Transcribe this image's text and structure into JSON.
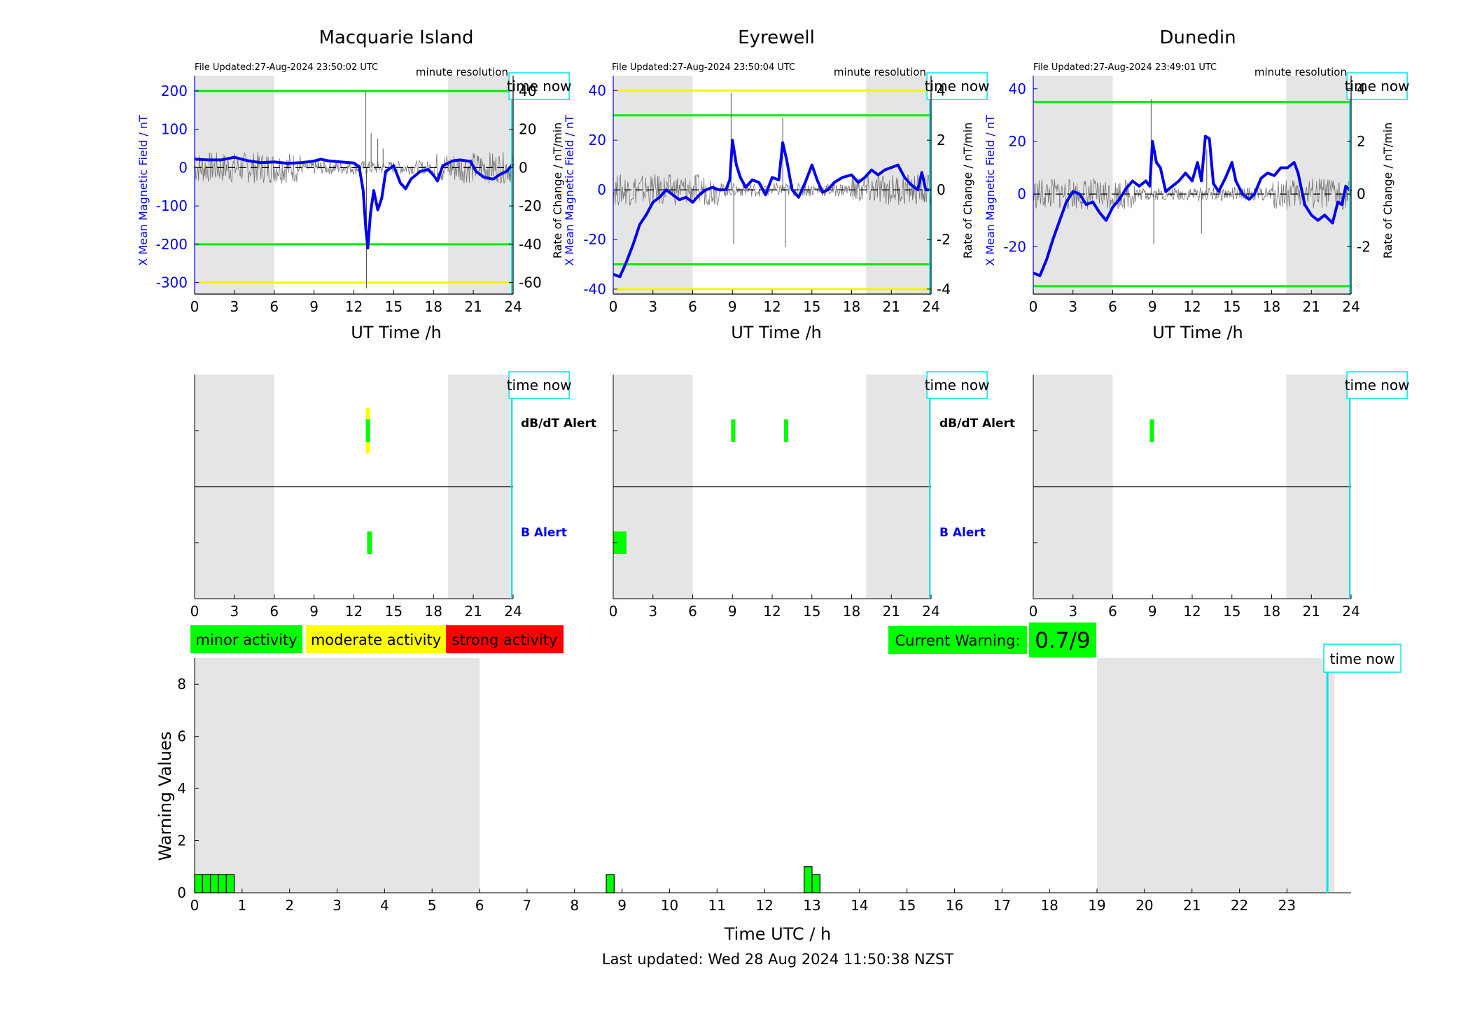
{
  "colors": {
    "bfield": "#0000ee",
    "rate": "#555555",
    "green_line": "#00ee00",
    "yellow_line": "#f5f500",
    "night": "#e5e5e5",
    "cyan": "#00e5e5",
    "minor": "#00ff00",
    "moderate": "#ffff00",
    "strong": "#ff0000"
  },
  "stations": [
    {
      "title": "Macquarie Island",
      "file_updated": "File Updated:27-Aug-2024 23:50:02 UTC",
      "resolution": "minute resolution",
      "time_now_label": "time now",
      "xlabel": "UT Time /h",
      "ylabel_left": "X Mean Magnetic Field / nT",
      "ylabel_right": "Rate of Change / nT/min",
      "dbdt_label": "dB/dT Alert",
      "b_label": "B Alert",
      "chart_data": {
        "type": "line",
        "xlim": [
          0,
          24
        ],
        "ylim_left": [
          -330,
          240
        ],
        "ylim_right": [
          -66,
          48
        ],
        "yticks_left": [
          200,
          100,
          0,
          -100,
          -200,
          -300
        ],
        "yticks_right": [
          40,
          20,
          0,
          -20,
          -40,
          -60
        ],
        "xticks": [
          0,
          3,
          6,
          9,
          12,
          15,
          18,
          21,
          24
        ],
        "night_bands": [
          [
            0,
            6
          ],
          [
            19.1,
            24
          ]
        ],
        "green_thresholds": [
          200,
          -200
        ],
        "yellow_thresholds": [
          -300
        ],
        "time_now": 23.9,
        "series": [
          {
            "points": [
              [
                0,
                22
              ],
              [
                1,
                20
              ],
              [
                2,
                20
              ],
              [
                3,
                27
              ],
              [
                4,
                18
              ],
              [
                5,
                13
              ],
              [
                6,
                15
              ],
              [
                7,
                11
              ],
              [
                8,
                13
              ],
              [
                9,
                17
              ],
              [
                9.5,
                22
              ],
              [
                10,
                18
              ],
              [
                11,
                15
              ],
              [
                12,
                12
              ],
              [
                12.4,
                2
              ],
              [
                12.7,
                -60
              ],
              [
                12.9,
                -160
              ],
              [
                13.05,
                -210
              ],
              [
                13.25,
                -120
              ],
              [
                13.5,
                -60
              ],
              [
                13.8,
                -110
              ],
              [
                14.1,
                -80
              ],
              [
                14.4,
                -10
              ],
              [
                15,
                5
              ],
              [
                15.5,
                -40
              ],
              [
                15.9,
                -55
              ],
              [
                16.3,
                -30
              ],
              [
                17,
                -10
              ],
              [
                17.6,
                -5
              ],
              [
                18,
                -20
              ],
              [
                18.3,
                -35
              ],
              [
                18.7,
                5
              ],
              [
                19.5,
                18
              ],
              [
                20,
                20
              ],
              [
                20.8,
                16
              ],
              [
                21.2,
                -10
              ],
              [
                21.8,
                -25
              ],
              [
                22.5,
                -30
              ],
              [
                23,
                -18
              ],
              [
                23.5,
                -10
              ],
              [
                24,
                10
              ]
            ]
          }
        ],
        "rate_spikes": [
          [
            12.9,
            40
          ],
          [
            12.95,
            -63
          ],
          [
            13.3,
            18
          ],
          [
            13.8,
            15
          ],
          [
            14.2,
            10
          ],
          [
            9.3,
            4
          ]
        ]
      },
      "alerts": {
        "dbdt": [
          {
            "hour": 12.9,
            "level": "moderate",
            "width": 0.25
          },
          {
            "hour": 12.9,
            "level": "minor",
            "width": 0.3
          }
        ],
        "b": [
          {
            "hour": 13.0,
            "level": "minor",
            "width": 0.35
          }
        ]
      }
    },
    {
      "title": "Eyrewell",
      "file_updated": "File Updated:27-Aug-2024 23:50:04 UTC",
      "resolution": "minute resolution",
      "time_now_label": "time now",
      "xlabel": "UT Time /h",
      "ylabel_left": "X Mean Magnetic Field / nT",
      "ylabel_right": "Rate of Change / nT/min",
      "dbdt_label": "dB/dT Alert",
      "b_label": "B Alert",
      "chart_data": {
        "type": "line",
        "xlim": [
          0,
          24
        ],
        "ylim_left": [
          -42,
          46
        ],
        "ylim_right": [
          -4.2,
          4.6
        ],
        "yticks_left": [
          40,
          20,
          0,
          -20,
          -40
        ],
        "yticks_right": [
          4,
          2,
          0,
          -2,
          -4
        ],
        "xticks": [
          0,
          3,
          6,
          9,
          12,
          15,
          18,
          21,
          24
        ],
        "night_bands": [
          [
            0,
            6
          ],
          [
            19.1,
            24
          ]
        ],
        "green_thresholds": [
          30,
          -30
        ],
        "yellow_thresholds": [
          40,
          -40
        ],
        "time_now": 23.9,
        "series": [
          {
            "points": [
              [
                0,
                -34
              ],
              [
                0.5,
                -35
              ],
              [
                1,
                -29
              ],
              [
                1.5,
                -22
              ],
              [
                2,
                -14
              ],
              [
                2.5,
                -10
              ],
              [
                3,
                -5
              ],
              [
                3.5,
                -3
              ],
              [
                4,
                0
              ],
              [
                4.5,
                -2
              ],
              [
                5,
                -4
              ],
              [
                5.5,
                -3
              ],
              [
                6,
                -5
              ],
              [
                6.5,
                -2
              ],
              [
                7,
                0
              ],
              [
                7.5,
                1
              ],
              [
                8,
                0
              ],
              [
                8.5,
                0
              ],
              [
                8.8,
                4
              ],
              [
                9,
                20
              ],
              [
                9.3,
                10
              ],
              [
                9.6,
                5
              ],
              [
                10,
                1
              ],
              [
                10.5,
                4
              ],
              [
                11,
                3
              ],
              [
                11.5,
                -2
              ],
              [
                12,
                5
              ],
              [
                12.5,
                4
              ],
              [
                12.8,
                19
              ],
              [
                13.1,
                12
              ],
              [
                13.5,
                0
              ],
              [
                14,
                -3
              ],
              [
                14.5,
                3
              ],
              [
                15,
                10
              ],
              [
                15.4,
                4
              ],
              [
                15.8,
                -1
              ],
              [
                16.2,
                0
              ],
              [
                16.7,
                3
              ],
              [
                17.3,
                5
              ],
              [
                18,
                6
              ],
              [
                18.5,
                3
              ],
              [
                19,
                5
              ],
              [
                19.5,
                8
              ],
              [
                20,
                6
              ],
              [
                20.5,
                8
              ],
              [
                21,
                9
              ],
              [
                21.5,
                10
              ],
              [
                22,
                5
              ],
              [
                22.5,
                2
              ],
              [
                23,
                0
              ],
              [
                23.3,
                7
              ],
              [
                23.6,
                0
              ],
              [
                24,
                0
              ]
            ]
          }
        ],
        "rate_spikes": [
          [
            8.9,
            3.9
          ],
          [
            9.1,
            -2.2
          ],
          [
            12.8,
            2.9
          ],
          [
            13,
            -2.3
          ]
        ]
      },
      "alerts": {
        "dbdt": [
          {
            "hour": 8.9,
            "level": "minor",
            "width": 0.3
          },
          {
            "hour": 12.9,
            "level": "minor",
            "width": 0.3
          }
        ],
        "b": [
          {
            "hour": 0.5,
            "level": "minor",
            "width": 1.0
          }
        ]
      }
    },
    {
      "title": "Dunedin",
      "file_updated": "File Updated:27-Aug-2024 23:49:01 UTC",
      "resolution": "minute resolution",
      "time_now_label": "time now",
      "xlabel": "UT Time /h",
      "ylabel_left": "X Mean Magnetic Field / nT",
      "ylabel_right": "Rate of Change / nT/min",
      "dbdt_label": "",
      "b_label": "",
      "chart_data": {
        "type": "line",
        "xlim": [
          0,
          24
        ],
        "ylim_left": [
          -38,
          45
        ],
        "ylim_right": [
          -3.8,
          4.5
        ],
        "yticks_left": [
          40,
          20,
          0,
          -20
        ],
        "yticks_right": [
          4,
          2,
          0,
          -2
        ],
        "xticks": [
          0,
          3,
          6,
          9,
          12,
          15,
          18,
          21,
          24
        ],
        "night_bands": [
          [
            0,
            6
          ],
          [
            19.1,
            24
          ]
        ],
        "green_thresholds": [
          35,
          -35
        ],
        "yellow_thresholds": [],
        "time_now": 23.9,
        "series": [
          {
            "points": [
              [
                0,
                -30
              ],
              [
                0.5,
                -31
              ],
              [
                1,
                -25
              ],
              [
                1.5,
                -17
              ],
              [
                2,
                -10
              ],
              [
                2.5,
                -3
              ],
              [
                3,
                1
              ],
              [
                3.5,
                0
              ],
              [
                4,
                -4
              ],
              [
                4.5,
                -3
              ],
              [
                5,
                -7
              ],
              [
                5.5,
                -10
              ],
              [
                6,
                -5
              ],
              [
                6.5,
                -2
              ],
              [
                7,
                2
              ],
              [
                7.5,
                5
              ],
              [
                8,
                3
              ],
              [
                8.5,
                5
              ],
              [
                8.8,
                3
              ],
              [
                9,
                20
              ],
              [
                9.3,
                12
              ],
              [
                9.6,
                10
              ],
              [
                10,
                1
              ],
              [
                10.5,
                3
              ],
              [
                11,
                5
              ],
              [
                11.5,
                8
              ],
              [
                12,
                5
              ],
              [
                12.4,
                12
              ],
              [
                12.7,
                5
              ],
              [
                13,
                22
              ],
              [
                13.3,
                21
              ],
              [
                13.6,
                4
              ],
              [
                14,
                1
              ],
              [
                14.5,
                6
              ],
              [
                15,
                12
              ],
              [
                15.3,
                5
              ],
              [
                15.8,
                0
              ],
              [
                16.3,
                -2
              ],
              [
                16.7,
                0
              ],
              [
                17.2,
                6
              ],
              [
                17.7,
                8
              ],
              [
                18.2,
                7
              ],
              [
                18.7,
                10
              ],
              [
                19.2,
                10
              ],
              [
                19.7,
                12
              ],
              [
                20,
                8
              ],
              [
                20.5,
                -4
              ],
              [
                21,
                -8
              ],
              [
                21.5,
                -10
              ],
              [
                22,
                -8
              ],
              [
                22.6,
                -11
              ],
              [
                23,
                -3
              ],
              [
                23.3,
                -4
              ],
              [
                23.6,
                3
              ],
              [
                24,
                1
              ]
            ]
          }
        ],
        "rate_spikes": [
          [
            8.9,
            3.6
          ],
          [
            9.1,
            -1.9
          ],
          [
            13.1,
            1.7
          ],
          [
            12.7,
            -1.5
          ]
        ]
      },
      "alerts": {
        "dbdt": [
          {
            "hour": 8.8,
            "level": "minor",
            "width": 0.3
          }
        ],
        "b": []
      }
    }
  ],
  "legend": {
    "minor": "minor activity",
    "moderate": "moderate activity",
    "strong": "strong activity"
  },
  "current_warning": {
    "label": "Current Warning:",
    "value": "0.7/9"
  },
  "warning_chart": {
    "chart_data": {
      "type": "bar",
      "xlabel": "Time UTC / h",
      "ylabel": "Warning Values",
      "xlim": [
        0,
        24
      ],
      "ylim": [
        0,
        9
      ],
      "yticks": [
        0,
        2,
        4,
        6,
        8
      ],
      "xticks": [
        0,
        1,
        2,
        3,
        4,
        5,
        6,
        7,
        8,
        9,
        10,
        11,
        12,
        13,
        14,
        15,
        16,
        17,
        18,
        19,
        20,
        21,
        22,
        23
      ],
      "night_bands": [
        [
          0,
          6
        ],
        [
          19,
          24
        ]
      ],
      "time_now": 23.85,
      "time_now_label": "time now",
      "bar_width_h": 0.1667,
      "bars": [
        [
          0,
          0.7
        ],
        [
          0.1667,
          0.7
        ],
        [
          0.3333,
          0.7
        ],
        [
          0.5,
          0.7
        ],
        [
          0.6667,
          0.7
        ],
        [
          8.667,
          0.7
        ],
        [
          12.833,
          1.0
        ],
        [
          13.0,
          0.7
        ]
      ]
    }
  },
  "footer": {
    "last_updated": "Last updated: Wed 28 Aug 2024 11:50:38 NZST"
  }
}
